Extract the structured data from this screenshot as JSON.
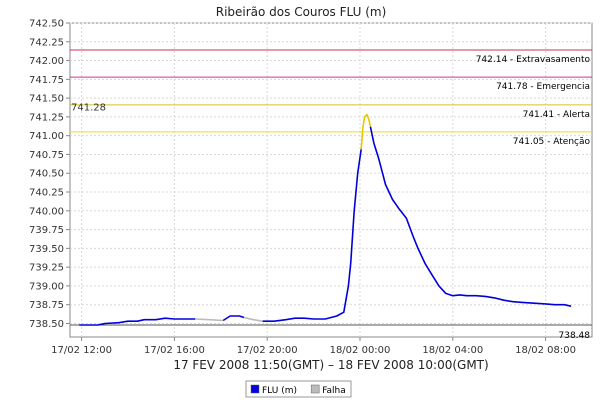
{
  "chart_data": {
    "type": "line",
    "title": "Ribeirão dos Couros FLU (m)",
    "xlabel": "17 FEV 2008 11:50(GMT) – 18 FEV 2008 10:00(GMT)",
    "ylabel": "",
    "x_unit": "hours since 17/02 00:00 (GMT)",
    "xlim": [
      11.5,
      10.0
    ],
    "ylim": [
      738.32,
      742.5
    ],
    "grid": true,
    "y_ticks": [
      "738.50",
      "738.75",
      "739.00",
      "739.25",
      "739.50",
      "739.75",
      "740.00",
      "740.25",
      "740.50",
      "740.75",
      "741.00",
      "741.25",
      "741.50",
      "741.75",
      "742.00",
      "742.25",
      "742.50"
    ],
    "x_ticks": [
      {
        "label": "17/02 12:00",
        "t": 12
      },
      {
        "label": "17/02 16:00",
        "t": 16
      },
      {
        "label": "17/02 20:00",
        "t": 20
      },
      {
        "label": "18/02 00:00",
        "t": 24
      },
      {
        "label": "18/02 04:00",
        "t": 28
      },
      {
        "label": "18/02 08:00",
        "t": 32
      }
    ],
    "thresholds": [
      {
        "value": 742.14,
        "label": "742.14 - Extravasamento",
        "color": "#cc3355"
      },
      {
        "value": 741.78,
        "label": "741.78 - Emergencia",
        "color": "#cc33aa"
      },
      {
        "value": 741.41,
        "label": "741.41 - Alerta",
        "color": "#d8c020"
      },
      {
        "value": 741.05,
        "label": "741.05 - Atenção",
        "color": "#e8e020"
      },
      {
        "value": 738.48,
        "label": "738.48",
        "color": "#555555"
      }
    ],
    "peak_annotation": {
      "label": "741.28"
    },
    "series": [
      {
        "name": "FLU (m)",
        "color": "#0000dd",
        "segments": [
          [
            [
              11.9,
              738.48
            ],
            [
              12.7,
              738.48
            ],
            [
              13.0,
              738.5
            ],
            [
              13.6,
              738.51
            ],
            [
              14.0,
              738.53
            ],
            [
              14.4,
              738.53
            ],
            [
              14.7,
              738.55
            ],
            [
              15.2,
              738.55
            ],
            [
              15.6,
              738.57
            ],
            [
              16.0,
              738.56
            ],
            [
              16.5,
              738.56
            ],
            [
              16.9,
              738.56
            ]
          ],
          [
            [
              18.1,
              738.54
            ],
            [
              18.4,
              738.6
            ],
            [
              18.8,
              738.6
            ],
            [
              19.0,
              738.58
            ]
          ],
          [
            [
              19.8,
              738.53
            ],
            [
              20.3,
              738.53
            ],
            [
              20.8,
              738.55
            ],
            [
              21.2,
              738.57
            ],
            [
              21.6,
              738.57
            ],
            [
              22.0,
              738.56
            ],
            [
              22.5,
              738.56
            ],
            [
              23.0,
              738.6
            ],
            [
              23.3,
              738.65
            ],
            [
              23.5,
              739.0
            ],
            [
              23.6,
              739.3
            ],
            [
              23.75,
              740.0
            ],
            [
              23.9,
              740.5
            ],
            [
              24.05,
              740.82
            ]
          ],
          [
            [
              24.45,
              741.12
            ],
            [
              24.6,
              740.9
            ],
            [
              24.8,
              740.7
            ],
            [
              25.1,
              740.35
            ],
            [
              25.4,
              740.15
            ],
            [
              25.7,
              740.02
            ],
            [
              26.0,
              739.9
            ],
            [
              26.3,
              739.65
            ],
            [
              26.5,
              739.5
            ],
            [
              26.8,
              739.3
            ],
            [
              27.1,
              739.15
            ],
            [
              27.4,
              739.0
            ],
            [
              27.7,
              738.9
            ],
            [
              28.0,
              738.87
            ],
            [
              28.3,
              738.88
            ],
            [
              28.6,
              738.87
            ],
            [
              29.0,
              738.87
            ],
            [
              29.4,
              738.86
            ],
            [
              29.8,
              738.84
            ],
            [
              30.2,
              738.81
            ],
            [
              30.6,
              738.79
            ],
            [
              31.0,
              738.78
            ],
            [
              31.5,
              738.77
            ],
            [
              32.0,
              738.76
            ],
            [
              32.4,
              738.75
            ],
            [
              32.8,
              738.75
            ],
            [
              33.1,
              738.73
            ]
          ]
        ]
      },
      {
        "name": "Falha",
        "color": "#bbbbbb",
        "segments": [
          [
            [
              16.9,
              738.56
            ],
            [
              17.5,
              738.55
            ],
            [
              18.1,
              738.54
            ]
          ],
          [
            [
              19.0,
              738.58
            ],
            [
              19.4,
              738.55
            ],
            [
              19.8,
              738.53
            ]
          ]
        ]
      },
      {
        "name": "peak",
        "color": "#e6c800",
        "segments": [
          [
            [
              24.05,
              740.82
            ],
            [
              24.12,
              741.1
            ],
            [
              24.2,
              741.25
            ],
            [
              24.3,
              741.28
            ],
            [
              24.38,
              741.22
            ],
            [
              24.45,
              741.12
            ]
          ]
        ]
      }
    ],
    "legend": {
      "placement": "bottom-center",
      "entries": [
        "FLU (m)",
        "Falha"
      ]
    }
  }
}
